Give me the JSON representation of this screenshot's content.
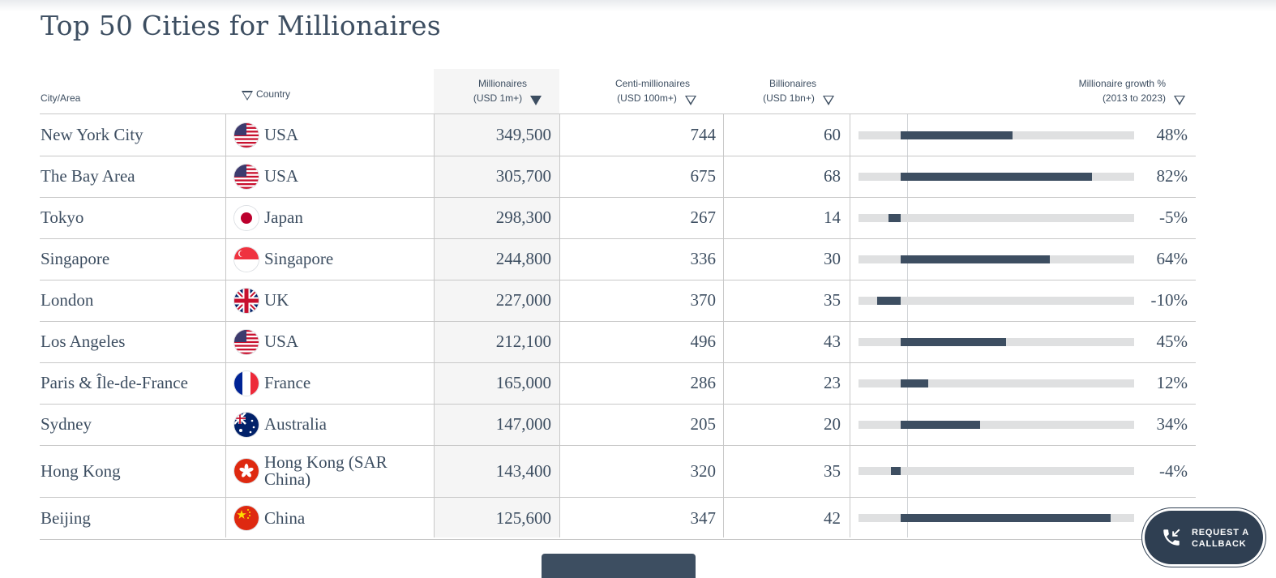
{
  "page": {
    "title": "Top 50 Cities for Millionaires"
  },
  "table": {
    "headers": {
      "city": "City/Area",
      "country": "Country",
      "millionaires_l1": "Millionaires",
      "millionaires_l2": "(USD 1m+)",
      "centi_l1": "Centi-millionaires",
      "centi_l2": "(USD 100m+)",
      "billionaires_l1": "Billionaires",
      "billionaires_l2": "(USD 1bn+)",
      "growth_l1": "Millionaire growth %",
      "growth_l2": "(2013 to 2023)"
    },
    "sorted_column": "millionaires",
    "growth_scale_percent": {
      "min": -18,
      "max": 100
    },
    "rows": [
      {
        "city": "New York City",
        "country": "USA",
        "flag": "us-flag-icon",
        "millionaires": "349,500",
        "centi": "744",
        "billionaires": "60",
        "growth": "48%",
        "growth_value": 48
      },
      {
        "city": "The Bay Area",
        "country": "USA",
        "flag": "us-flag-icon",
        "millionaires": "305,700",
        "centi": "675",
        "billionaires": "68",
        "growth": "82%",
        "growth_value": 82
      },
      {
        "city": "Tokyo",
        "country": "Japan",
        "flag": "jp-flag-icon",
        "millionaires": "298,300",
        "centi": "267",
        "billionaires": "14",
        "growth": "-5%",
        "growth_value": -5
      },
      {
        "city": "Singapore",
        "country": "Singapore",
        "flag": "sg-flag-icon",
        "millionaires": "244,800",
        "centi": "336",
        "billionaires": "30",
        "growth": "64%",
        "growth_value": 64
      },
      {
        "city": "London",
        "country": "UK",
        "flag": "uk-flag-icon",
        "millionaires": "227,000",
        "centi": "370",
        "billionaires": "35",
        "growth": "-10%",
        "growth_value": -10
      },
      {
        "city": "Los Angeles",
        "country": "USA",
        "flag": "us-flag-icon",
        "millionaires": "212,100",
        "centi": "496",
        "billionaires": "43",
        "growth": "45%",
        "growth_value": 45
      },
      {
        "city": "Paris & Île-de-France",
        "country": "France",
        "flag": "fr-flag-icon",
        "millionaires": "165,000",
        "centi": "286",
        "billionaires": "23",
        "growth": "12%",
        "growth_value": 12
      },
      {
        "city": "Sydney",
        "country": "Australia",
        "flag": "au-flag-icon",
        "millionaires": "147,000",
        "centi": "205",
        "billionaires": "20",
        "growth": "34%",
        "growth_value": 34
      },
      {
        "city": "Hong Kong",
        "country": "Hong Kong (SAR China)",
        "flag": "hk-flag-icon",
        "millionaires": "143,400",
        "centi": "320",
        "billionaires": "35",
        "growth": "-4%",
        "growth_value": -4
      },
      {
        "city": "Beijing",
        "country": "China",
        "flag": "cn-flag-icon",
        "millionaires": "125,600",
        "centi": "347",
        "billionaires": "42",
        "growth": "",
        "growth_value": 90
      }
    ]
  },
  "callback_button": {
    "line1": "REQUEST A",
    "line2": "CALLBACK",
    "icon": "phone-icon"
  },
  "colors": {
    "primary": "#3d4e61",
    "track": "#dfe0e1",
    "sorted_column_bg": "#f5f5f5",
    "border": "#c8c8c8"
  }
}
